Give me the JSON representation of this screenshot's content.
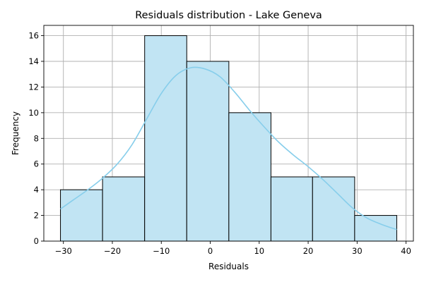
{
  "chart_data": {
    "type": "bar",
    "subtype": "histogram",
    "title": "Residuals distribution - Lake Geneva",
    "xlabel": "Residuals",
    "ylabel": "Frequency",
    "xlim": [
      -34,
      41.5
    ],
    "ylim": [
      0,
      16.8
    ],
    "xticks": [
      -30,
      -20,
      -10,
      0,
      10,
      20,
      30,
      40
    ],
    "yticks": [
      0,
      2,
      4,
      6,
      8,
      10,
      12,
      14,
      16
    ],
    "grid": true,
    "bin_edges": [
      -30.6,
      -22.0,
      -13.4,
      -4.8,
      3.8,
      12.4,
      20.9,
      29.5,
      38.1
    ],
    "values": [
      4,
      5,
      16,
      14,
      10,
      5,
      5,
      2
    ],
    "kde": {
      "x": [
        -30.6,
        -28,
        -25,
        -22,
        -19,
        -16,
        -13,
        -10,
        -7,
        -4,
        -1,
        2,
        5,
        8,
        11,
        14,
        17,
        20,
        23,
        26,
        29,
        32,
        35,
        38.1
      ],
      "y": [
        2.5,
        3.2,
        4.0,
        4.9,
        6.0,
        7.5,
        9.5,
        11.5,
        12.9,
        13.5,
        13.4,
        12.8,
        11.6,
        10.2,
        8.9,
        7.7,
        6.7,
        5.8,
        4.8,
        3.7,
        2.6,
        1.8,
        1.3,
        0.9
      ]
    },
    "colors": {
      "bar": "#c1e4f3",
      "edge": "#000000",
      "kde": "#87ceeb",
      "grid": "#b0b0b0"
    }
  }
}
